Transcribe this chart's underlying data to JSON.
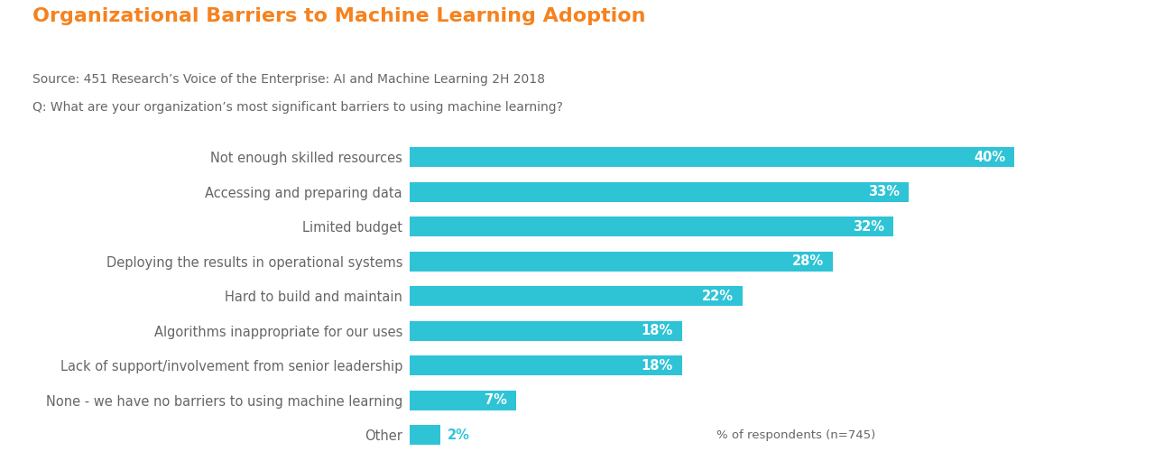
{
  "title": "Organizational Barriers to Machine Learning Adoption",
  "source_line1": "Source: 451 Research’s Voice of the Enterprise: AI and Machine Learning 2H 2018",
  "source_line2": "Q: What are your organization’s most significant barriers to using machine learning?",
  "footnote": "% of respondents (n=745)",
  "categories": [
    "Not enough skilled resources",
    "Accessing and preparing data",
    "Limited budget",
    "Deploying the results in operational systems",
    "Hard to build and maintain",
    "Algorithms inappropriate for our uses",
    "Lack of support/involvement from senior leadership",
    "None - we have no barriers to using machine learning",
    "Other"
  ],
  "values": [
    40,
    33,
    32,
    28,
    22,
    18,
    18,
    7,
    2
  ],
  "bar_color": "#2ec4d6",
  "title_color": "#f5821e",
  "label_color": "#666666",
  "value_label_color": "#ffffff",
  "value_label_outside_color": "#2ec4d6",
  "background_color": "#ffffff",
  "bar_height": 0.58,
  "xlim": [
    0,
    47
  ],
  "title_fontsize": 16,
  "source_fontsize": 10,
  "label_fontsize": 10.5,
  "value_fontsize": 10.5,
  "footnote_fontsize": 9.5,
  "small_bar_threshold": 5
}
